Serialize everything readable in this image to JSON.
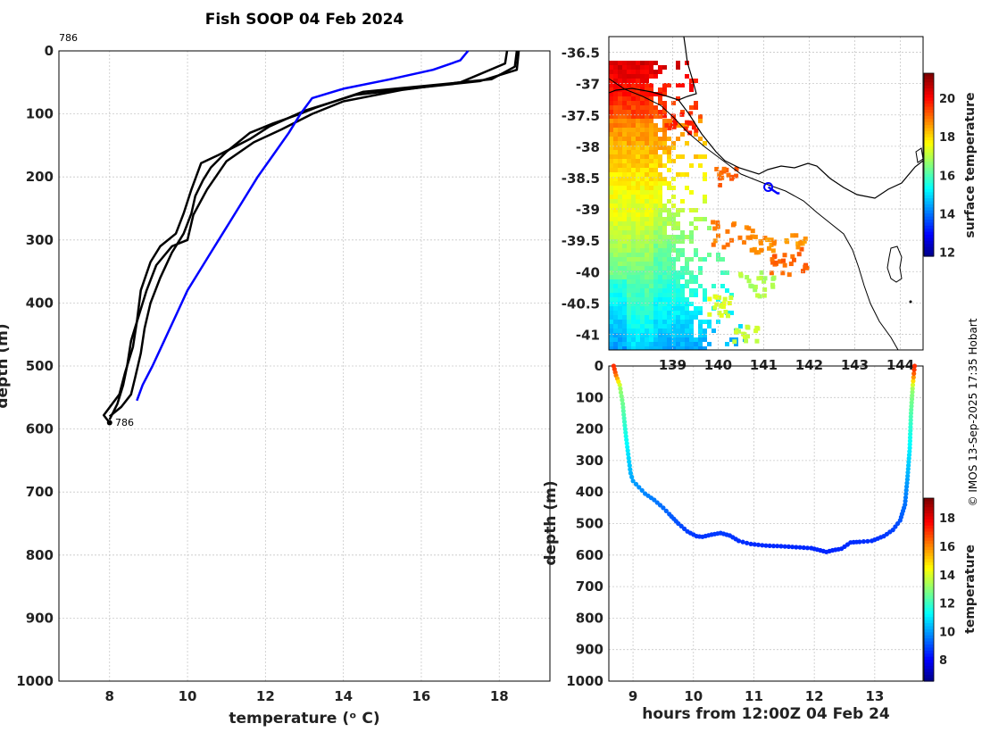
{
  "figure": {
    "title": "Fish SOOP 04 Feb 2024",
    "credit": "© IMOS 13-Sep-2025 17:35 Hobart",
    "profile_id_top": "786",
    "profile_id_bottom": "786",
    "colors": {
      "probe_line": "#0000ff",
      "previous_profiles": "#000000",
      "grid": "#c8c8c8"
    }
  },
  "chart_data": [
    {
      "type": "line",
      "name": "temperature-profile",
      "xlabel": "temperature (ᵒ C)",
      "ylabel": "depth (m)",
      "xlim": [
        6.7,
        19.3
      ],
      "ylim": [
        1000,
        0
      ],
      "xticks": [
        8,
        10,
        12,
        14,
        16,
        18
      ],
      "yticks": [
        0,
        100,
        200,
        300,
        400,
        500,
        600,
        700,
        800,
        900,
        1000
      ],
      "grid": true,
      "series": [
        {
          "name": "profile 786",
          "color": "#0000ff",
          "points": [
            [
              17.2,
              0
            ],
            [
              17.0,
              15
            ],
            [
              16.3,
              30
            ],
            [
              15.2,
              45
            ],
            [
              14.0,
              60
            ],
            [
              13.2,
              75
            ],
            [
              12.9,
              100
            ],
            [
              12.6,
              130
            ],
            [
              12.2,
              165
            ],
            [
              11.8,
              200
            ],
            [
              11.4,
              240
            ],
            [
              11.0,
              280
            ],
            [
              10.6,
              320
            ],
            [
              10.3,
              350
            ],
            [
              10.0,
              380
            ],
            [
              9.7,
              420
            ],
            [
              9.4,
              460
            ],
            [
              9.1,
              500
            ],
            [
              8.85,
              530
            ],
            [
              8.7,
              555
            ]
          ]
        },
        {
          "name": "previous profile 1",
          "color": "#000000",
          "points": [
            [
              18.45,
              0
            ],
            [
              18.4,
              25
            ],
            [
              17.8,
              45
            ],
            [
              16.2,
              55
            ],
            [
              14.5,
              65
            ],
            [
              13.3,
              90
            ],
            [
              12.8,
              102
            ],
            [
              12.2,
              115
            ],
            [
              11.6,
              130
            ],
            [
              11.0,
              160
            ],
            [
              10.6,
              185
            ],
            [
              10.4,
              205
            ],
            [
              10.2,
              230
            ],
            [
              10.1,
              258
            ],
            [
              9.9,
              290
            ],
            [
              9.6,
              320
            ],
            [
              9.3,
              360
            ],
            [
              9.05,
              400
            ],
            [
              8.9,
              440
            ],
            [
              8.8,
              480
            ],
            [
              8.65,
              520
            ],
            [
              8.55,
              545
            ],
            [
              8.3,
              565
            ],
            [
              8.0,
              580
            ]
          ]
        },
        {
          "name": "previous profile 2",
          "color": "#000000",
          "points": [
            [
              18.5,
              0
            ],
            [
              18.45,
              30
            ],
            [
              17.5,
              48
            ],
            [
              16.0,
              58
            ],
            [
              14.3,
              70
            ],
            [
              13.0,
              95
            ],
            [
              12.1,
              120
            ],
            [
              11.6,
              140
            ],
            [
              10.8,
              165
            ],
            [
              10.35,
              178
            ],
            [
              10.1,
              220
            ],
            [
              9.9,
              258
            ],
            [
              9.7,
              290
            ],
            [
              9.3,
              310
            ],
            [
              9.05,
              335
            ],
            [
              8.8,
              380
            ],
            [
              8.7,
              430
            ],
            [
              8.6,
              470
            ],
            [
              8.4,
              510
            ],
            [
              8.25,
              545
            ],
            [
              7.85,
              578
            ],
            [
              8.0,
              590
            ]
          ]
        },
        {
          "name": "previous profile 3",
          "color": "#000000",
          "points": [
            [
              18.2,
              0
            ],
            [
              18.15,
              20
            ],
            [
              17.0,
              50
            ],
            [
              15.5,
              62
            ],
            [
              14.0,
              80
            ],
            [
              13.2,
              100
            ],
            [
              12.4,
              125
            ],
            [
              11.7,
              145
            ],
            [
              11.0,
              175
            ],
            [
              10.5,
              220
            ],
            [
              10.15,
              260
            ],
            [
              10.0,
              300
            ],
            [
              9.6,
              310
            ],
            [
              9.2,
              340
            ],
            [
              8.95,
              380
            ],
            [
              8.75,
              420
            ],
            [
              8.55,
              460
            ],
            [
              8.45,
              500
            ],
            [
              8.35,
              530
            ],
            [
              8.2,
              560
            ],
            [
              8.0,
              585
            ]
          ]
        }
      ]
    },
    {
      "type": "heatmap",
      "name": "surface-temperature-map",
      "colorbar_label": "surface temperature",
      "colorbar_ticks": [
        12,
        14,
        16,
        18,
        20
      ],
      "colorbar_range": [
        11.8,
        21.3
      ],
      "xlim": [
        137.6,
        144.5
      ],
      "ylim": [
        -41.25,
        -36.25
      ],
      "xticks": [
        139,
        140,
        141,
        142,
        143,
        144
      ],
      "xtick_labels": [
        "139",
        "140",
        "141",
        "142",
        "143",
        "144"
      ],
      "yticks": [
        -36.5,
        -37,
        -37.5,
        -38,
        -38.5,
        -39,
        -39.5,
        -40,
        -40.5,
        -41
      ],
      "ytick_labels": [
        "-36.5",
        "-37",
        "-37.5",
        "-38",
        "-38.5",
        "-39",
        "-39.5",
        "-40",
        "-40.5",
        "-41"
      ],
      "grid": true,
      "track": [
        [
          141.1,
          -38.65
        ],
        [
          141.2,
          -38.7
        ],
        [
          141.3,
          -38.75
        ],
        [
          141.35,
          -38.75
        ]
      ],
      "track_color": "#0000ff"
    },
    {
      "type": "scatter",
      "name": "probe-track-depth",
      "xlabel": "hours from 12:00Z 04 Feb 24",
      "ylabel": "depth (m)",
      "xlim": [
        8.6,
        13.8
      ],
      "ylim": [
        1000,
        0
      ],
      "xticks": [
        9,
        10,
        11,
        12,
        13
      ],
      "yticks": [
        0,
        100,
        200,
        300,
        400,
        500,
        600,
        700,
        800,
        900,
        1000
      ],
      "colorbar_label": "temperature",
      "colorbar_ticks": [
        8,
        10,
        12,
        14,
        16,
        18
      ],
      "colorbar_range": [
        6.5,
        19.4
      ],
      "points_xy": [
        [
          8.68,
          0
        ],
        [
          8.72,
          30
        ],
        [
          8.78,
          60
        ],
        [
          8.83,
          120
        ],
        [
          8.87,
          200
        ],
        [
          8.92,
          280
        ],
        [
          8.96,
          340
        ],
        [
          9.0,
          365
        ],
        [
          9.1,
          385
        ],
        [
          9.2,
          405
        ],
        [
          9.35,
          425
        ],
        [
          9.5,
          450
        ],
        [
          9.6,
          470
        ],
        [
          9.75,
          500
        ],
        [
          9.9,
          525
        ],
        [
          10.05,
          540
        ],
        [
          10.15,
          542
        ],
        [
          10.3,
          535
        ],
        [
          10.45,
          530
        ],
        [
          10.6,
          538
        ],
        [
          10.75,
          555
        ],
        [
          10.95,
          565
        ],
        [
          11.2,
          570
        ],
        [
          11.45,
          572
        ],
        [
          11.7,
          575
        ],
        [
          11.95,
          578
        ],
        [
          12.1,
          585
        ],
        [
          12.2,
          590
        ],
        [
          12.3,
          585
        ],
        [
          12.45,
          580
        ],
        [
          12.6,
          560
        ],
        [
          12.75,
          558
        ],
        [
          12.95,
          555
        ],
        [
          13.15,
          540
        ],
        [
          13.3,
          520
        ],
        [
          13.42,
          490
        ],
        [
          13.5,
          440
        ],
        [
          13.54,
          360
        ],
        [
          13.58,
          260
        ],
        [
          13.6,
          150
        ],
        [
          13.63,
          60
        ],
        [
          13.66,
          0
        ]
      ]
    }
  ]
}
